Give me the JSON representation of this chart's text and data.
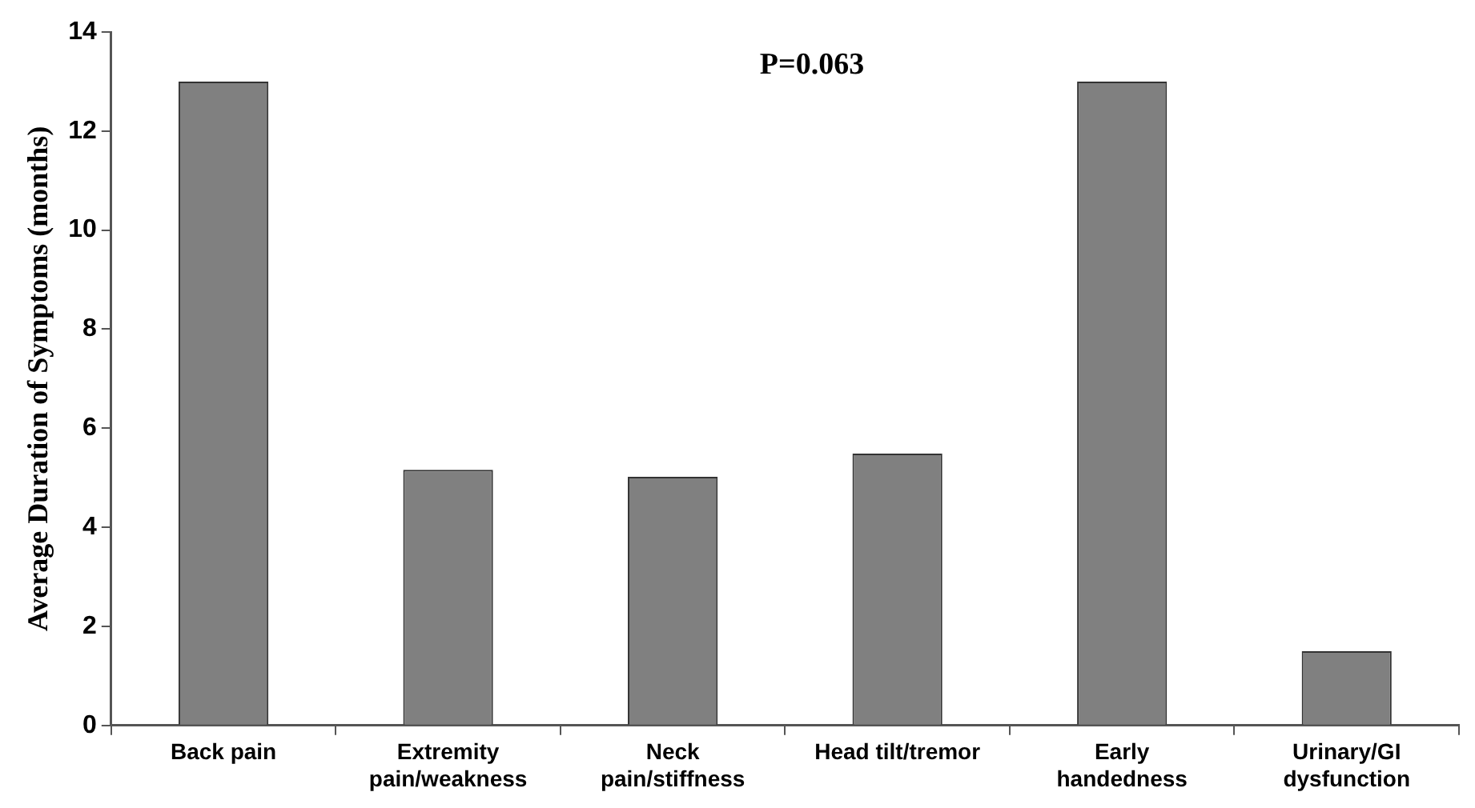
{
  "chart_data": {
    "type": "bar",
    "ylabel": "Average Duration of Symptoms (months)",
    "annotations": [
      "P=0.063"
    ],
    "categories": [
      "Back pain",
      "Extremity\npain/weakness",
      "Neck\npain/stiffness",
      "Head tilt/tremor",
      "Early\nhandedness",
      "Urinary/GI\ndysfunction"
    ],
    "values": [
      13,
      5.16,
      5.02,
      5.49,
      13,
      1.5
    ],
    "color": "#808080",
    "ylim": [
      0,
      14
    ],
    "yticks": [
      0,
      2,
      4,
      6,
      8,
      10,
      12,
      14
    ],
    "grid": false,
    "legend": false
  }
}
